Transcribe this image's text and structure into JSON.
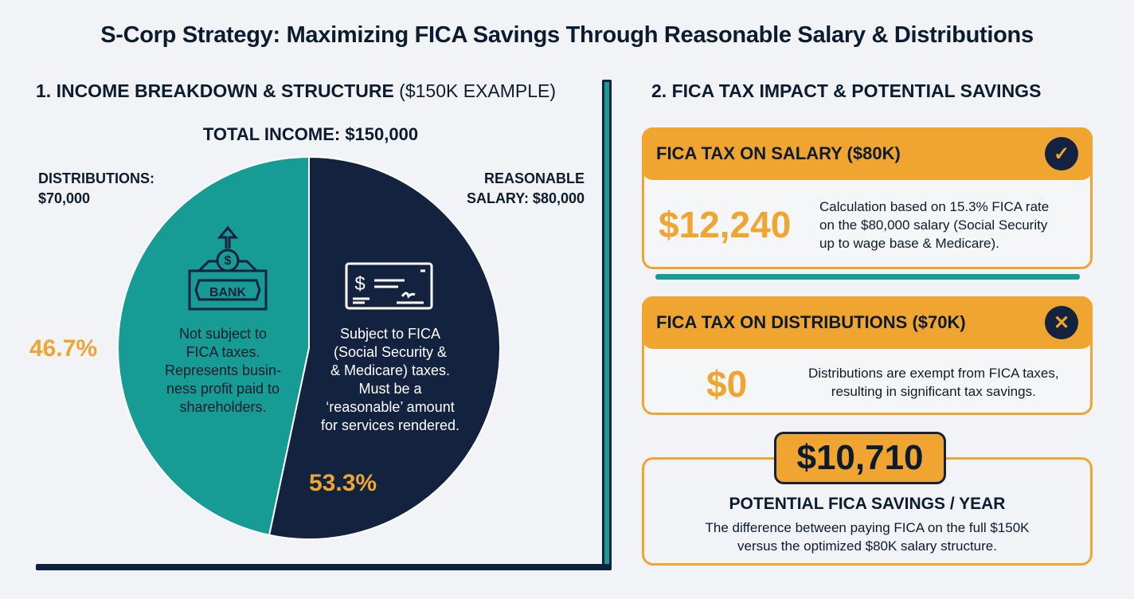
{
  "title": "S-Corp Strategy: Maximizing FICA Savings Through Reasonable Salary & Distributions",
  "section1": {
    "heading": "1. INCOME BREAKDOWN & STRUCTURE",
    "heading_suffix": "($150K EXAMPLE)",
    "total": "TOTAL INCOME: $150,000",
    "distributions_label": [
      "DISTRIBUTIONS:",
      "$70,000"
    ],
    "salary_label": [
      "REASONABLE",
      "SALARY: $80,000"
    ],
    "distributions_pct": "46.7%",
    "salary_pct": "53.3%",
    "distributions_text": [
      "Not subject to",
      "FICA taxes.",
      "Represents busin-",
      "ness profit paid to",
      "shareholders."
    ],
    "salary_text": [
      "Subject to FICA",
      "(Social Security &",
      "& Medicare) taxes.",
      "Must be a",
      "‘reasonable’ amount",
      "for services rendered."
    ],
    "bank_icon_text": "BANK"
  },
  "section2": {
    "heading": "2. FICA TAX IMPACT & POTENTIAL SAVINGS",
    "salary_card": {
      "title": "FICA TAX ON SALARY ($80K)",
      "amount": "$12,240",
      "desc": [
        "Calculation based on 15.3% FICA rate",
        "on the $80,000 salary (Social Security",
        "up to wage base & Medicare)."
      ],
      "icon": "check-icon"
    },
    "dist_card": {
      "title": "FICA TAX ON DISTRIBUTIONS ($70K)",
      "amount": "$0",
      "desc": [
        "Distributions are exempt from FICA taxes,",
        "resulting in significant tax savings."
      ],
      "icon": "x-icon"
    },
    "savings": {
      "amount": "$10,710",
      "title": "POTENTIAL FICA SAVINGS / YEAR",
      "desc": [
        "The difference between paying FICA on the full $150K",
        "versus the optimized $80K salary structure."
      ]
    }
  },
  "colors": {
    "navy": "#13223f",
    "teal": "#169c94",
    "orange": "#f0a531"
  },
  "chart_data": {
    "type": "pie",
    "title": "TOTAL INCOME: $150,000",
    "slices": [
      {
        "name": "DISTRIBUTIONS: $70,000",
        "value": 70000,
        "percent": 46.7,
        "color": "#169c94"
      },
      {
        "name": "REASONABLE SALARY: $80,000",
        "value": 80000,
        "percent": 53.3,
        "color": "#13223f"
      }
    ]
  }
}
